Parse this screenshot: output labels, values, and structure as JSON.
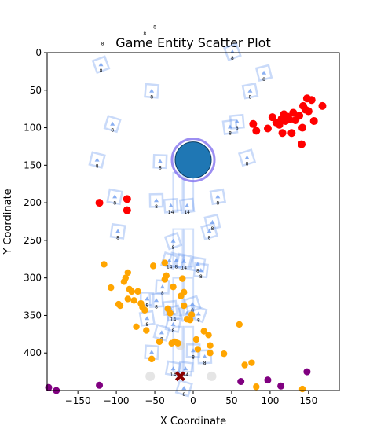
{
  "chart_data": {
    "type": "scatter",
    "title": "Game Entity Scatter Plot",
    "xlabel": "X Coordinate",
    "ylabel": "Y Coordinate",
    "xlim": [
      -190,
      190
    ],
    "ylim": [
      450,
      0
    ],
    "y_inverted": true,
    "grid": false,
    "x_ticks": [
      {
        "value": -150,
        "label": "−150"
      },
      {
        "value": -100,
        "label": "−100"
      },
      {
        "value": -50,
        "label": "−50"
      },
      {
        "value": 0,
        "label": "0"
      },
      {
        "value": 50,
        "label": "50"
      },
      {
        "value": 100,
        "label": "100"
      },
      {
        "value": 150,
        "label": "150"
      }
    ],
    "y_ticks": [
      {
        "value": 0,
        "label": "0"
      },
      {
        "value": 50,
        "label": "50"
      },
      {
        "value": 100,
        "label": "100"
      },
      {
        "value": 150,
        "label": "150"
      },
      {
        "value": 200,
        "label": "200"
      },
      {
        "value": 250,
        "label": "250"
      },
      {
        "value": 300,
        "label": "300"
      },
      {
        "value": 350,
        "label": "350"
      },
      {
        "value": 400,
        "label": "400"
      }
    ],
    "colors": {
      "red": "#ff0000",
      "orange": "#ffa500",
      "purple": "#800080",
      "player": "#1f77b4",
      "player_ring": "#7b68ee",
      "marker": "#6495ed",
      "gray": "#d3d3d3",
      "cross": "#8b0000"
    },
    "player": {
      "x": 0,
      "y": 143
    },
    "cross": {
      "x": -17,
      "y": 431
    },
    "red_points": [
      [
        78,
        95
      ],
      [
        82,
        104
      ],
      [
        97,
        101
      ],
      [
        103,
        86
      ],
      [
        108,
        93
      ],
      [
        112,
        96
      ],
      [
        115,
        88
      ],
      [
        118,
        82
      ],
      [
        120,
        91
      ],
      [
        122,
        85
      ],
      [
        125,
        89
      ],
      [
        130,
        80
      ],
      [
        133,
        90
      ],
      [
        138,
        84
      ],
      [
        143,
        71
      ],
      [
        146,
        76
      ],
      [
        148,
        61
      ],
      [
        150,
        78
      ],
      [
        154,
        63
      ],
      [
        157,
        91
      ],
      [
        168,
        71
      ],
      [
        128,
        107
      ],
      [
        142,
        100
      ],
      [
        116,
        107
      ],
      [
        141,
        122
      ],
      [
        -122,
        200
      ],
      [
        -86,
        195
      ],
      [
        -86,
        210
      ]
    ],
    "orange_points": [
      [
        -116,
        282
      ],
      [
        -107,
        313
      ],
      [
        -97,
        335
      ],
      [
        -95,
        337
      ],
      [
        -90,
        305
      ],
      [
        -88,
        300
      ],
      [
        -85,
        293
      ],
      [
        -85,
        328
      ],
      [
        -83,
        315
      ],
      [
        -80,
        318
      ],
      [
        -77,
        330
      ],
      [
        -74,
        365
      ],
      [
        -72,
        318
      ],
      [
        -68,
        334
      ],
      [
        -66,
        339
      ],
      [
        -63,
        343
      ],
      [
        -61,
        370
      ],
      [
        -54,
        408
      ],
      [
        -52,
        284
      ],
      [
        -44,
        385
      ],
      [
        -37,
        280
      ],
      [
        -37,
        302
      ],
      [
        -35,
        297
      ],
      [
        -33,
        341
      ],
      [
        -30,
        347
      ],
      [
        -28,
        387
      ],
      [
        -26,
        312
      ],
      [
        -24,
        385
      ],
      [
        -20,
        387
      ],
      [
        -16,
        324
      ],
      [
        -14,
        301
      ],
      [
        -12,
        319
      ],
      [
        -12,
        337
      ],
      [
        -8,
        355
      ],
      [
        -4,
        356
      ],
      [
        -2,
        349
      ],
      [
        4,
        382
      ],
      [
        6,
        395
      ],
      [
        14,
        371
      ],
      [
        20,
        376
      ],
      [
        22,
        390
      ],
      [
        22,
        400
      ],
      [
        40,
        401
      ],
      [
        60,
        362
      ],
      [
        67,
        416
      ],
      [
        76,
        413
      ],
      [
        82,
        445
      ],
      [
        142,
        448
      ]
    ],
    "purple_points": [
      [
        -188,
        446
      ],
      [
        -178,
        450
      ],
      [
        -122,
        443
      ],
      [
        62,
        438
      ],
      [
        97,
        436
      ],
      [
        114,
        444
      ],
      [
        148,
        425
      ]
    ],
    "gray_points": [
      [
        -56,
        431
      ],
      [
        -17,
        390
      ],
      [
        24,
        431
      ]
    ],
    "square_markers": [
      {
        "x": -120,
        "y": 17,
        "label": "8"
      },
      {
        "x": -105,
        "y": 96,
        "label": "8"
      },
      {
        "x": -125,
        "y": 144,
        "label": "8"
      },
      {
        "x": -102,
        "y": 193,
        "label": "8"
      },
      {
        "x": -98,
        "y": 239,
        "label": "8"
      },
      {
        "x": -54,
        "y": 52,
        "label": "8"
      },
      {
        "x": -43,
        "y": 146,
        "label": "8"
      },
      {
        "x": -48,
        "y": 198,
        "label": "8"
      },
      {
        "x": -29,
        "y": 205,
        "label": "14"
      },
      {
        "x": -8,
        "y": 205,
        "label": "14"
      },
      {
        "x": 32,
        "y": 193,
        "label": "8"
      },
      {
        "x": 25,
        "y": 227,
        "label": "8"
      },
      {
        "x": 21,
        "y": 239,
        "label": "8"
      },
      {
        "x": -26,
        "y": 252,
        "label": "8"
      },
      {
        "x": -31,
        "y": 278,
        "label": "14"
      },
      {
        "x": -22,
        "y": 278,
        "label": "8"
      },
      {
        "x": -12,
        "y": 279,
        "label": "14"
      },
      {
        "x": 6,
        "y": 283,
        "label": "8"
      },
      {
        "x": 10,
        "y": 291,
        "label": "8"
      },
      {
        "x": -40,
        "y": 313,
        "label": "8"
      },
      {
        "x": -60,
        "y": 329,
        "label": "8"
      },
      {
        "x": -48,
        "y": 331,
        "label": "8"
      },
      {
        "x": -30,
        "y": 341,
        "label": "8"
      },
      {
        "x": -60,
        "y": 355,
        "label": "8"
      },
      {
        "x": -26,
        "y": 348,
        "label": "14"
      },
      {
        "x": -8,
        "y": 348,
        "label": "14"
      },
      {
        "x": -1,
        "y": 336,
        "label": "8"
      },
      {
        "x": 7,
        "y": 349,
        "label": "8"
      },
      {
        "x": -41,
        "y": 374,
        "label": "8"
      },
      {
        "x": -26,
        "y": 363,
        "label": "8"
      },
      {
        "x": -26,
        "y": 422,
        "label": "14"
      },
      {
        "x": -10,
        "y": 422,
        "label": "14"
      },
      {
        "x": -54,
        "y": 400,
        "label": "8"
      },
      {
        "x": 0,
        "y": 398,
        "label": "8"
      },
      {
        "x": 15,
        "y": 406,
        "label": "8"
      },
      {
        "x": 57,
        "y": 93,
        "label": "8"
      },
      {
        "x": 48,
        "y": 100,
        "label": "8"
      },
      {
        "x": 74,
        "y": 52,
        "label": "8"
      },
      {
        "x": 92,
        "y": 28,
        "label": "8"
      },
      {
        "x": 70,
        "y": 141,
        "label": "8"
      },
      {
        "x": 51,
        "y": 0,
        "label": "8"
      },
      {
        "x": -12,
        "y": 448,
        "label": "8"
      }
    ],
    "floating_labels": [
      {
        "x": -50,
        "y": -32,
        "label": "8"
      },
      {
        "x": -63,
        "y": -23,
        "label": "8"
      },
      {
        "x": -118,
        "y": -10,
        "label": "8"
      }
    ],
    "bars": [
      {
        "x": -20,
        "y_top": 160,
        "y_bottom": 210
      },
      {
        "x": -6,
        "y_top": 160,
        "y_bottom": 210
      },
      {
        "x": -20,
        "y_top": 235,
        "y_bottom": 285
      },
      {
        "x": -6,
        "y_top": 235,
        "y_bottom": 285
      },
      {
        "x": -20,
        "y_top": 300,
        "y_bottom": 350
      },
      {
        "x": -6,
        "y_top": 300,
        "y_bottom": 350
      },
      {
        "x": -20,
        "y_top": 365,
        "y_bottom": 425
      },
      {
        "x": -6,
        "y_top": 365,
        "y_bottom": 425
      }
    ]
  }
}
